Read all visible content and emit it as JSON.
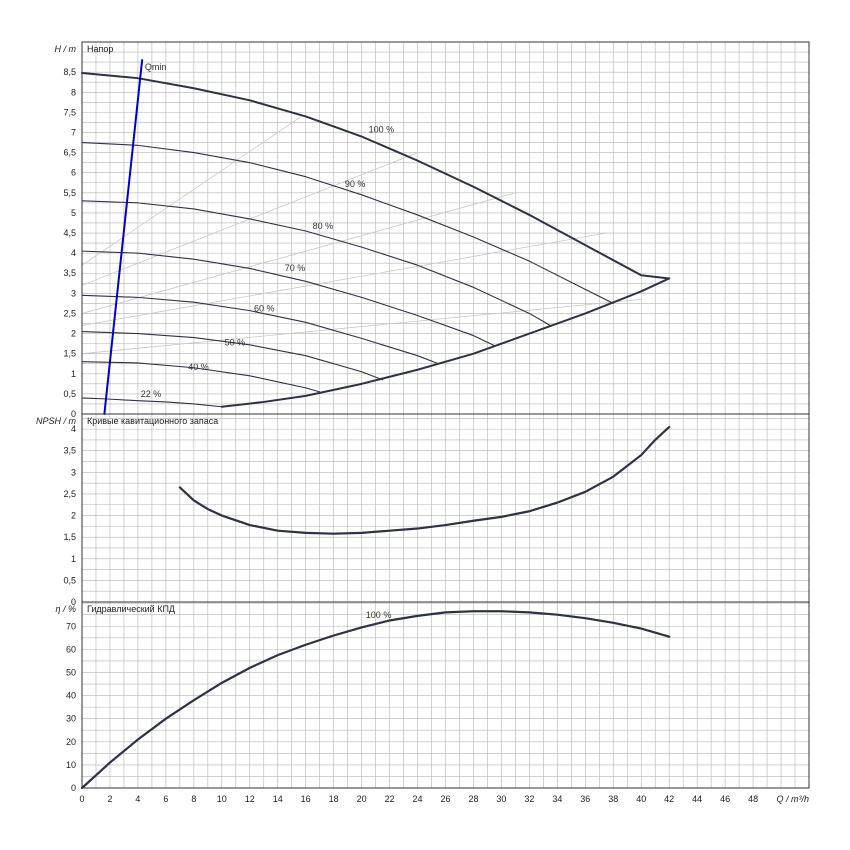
{
  "chart_data": [
    {
      "panel": "head",
      "type": "line",
      "title": "Напор",
      "ylabel": "H / m",
      "xlim": [
        0,
        52
      ],
      "ylim": [
        0,
        9.25
      ],
      "yticks": [
        0,
        0.5,
        1,
        1.5,
        2,
        2.5,
        3,
        3.5,
        4,
        4.5,
        5,
        5.5,
        6,
        6.5,
        7,
        7.5,
        8,
        8.5
      ],
      "grid": true,
      "series": [
        {
          "name": "100 %",
          "x": [
            0,
            4,
            8,
            12,
            16,
            20,
            24,
            28,
            32,
            36,
            40,
            42
          ],
          "y": [
            8.48,
            8.35,
            8.1,
            7.8,
            7.4,
            6.9,
            6.3,
            5.65,
            4.95,
            4.2,
            3.45,
            3.37
          ]
        },
        {
          "name": "90 %",
          "x": [
            0,
            4,
            8,
            12,
            16,
            20,
            24,
            28,
            32,
            36,
            38
          ],
          "y": [
            6.75,
            6.68,
            6.5,
            6.25,
            5.9,
            5.45,
            4.95,
            4.4,
            3.8,
            3.1,
            2.75
          ]
        },
        {
          "name": "80 %",
          "x": [
            0,
            4,
            8,
            12,
            16,
            20,
            24,
            28,
            32,
            33.5
          ],
          "y": [
            5.3,
            5.25,
            5.1,
            4.85,
            4.55,
            4.15,
            3.7,
            3.15,
            2.5,
            2.2
          ]
        },
        {
          "name": "70 %",
          "x": [
            0,
            4,
            8,
            12,
            16,
            20,
            24,
            28,
            29.5
          ],
          "y": [
            4.05,
            4.0,
            3.85,
            3.62,
            3.3,
            2.9,
            2.45,
            1.95,
            1.7
          ]
        },
        {
          "name": "60 %",
          "x": [
            0,
            4,
            8,
            12,
            16,
            20,
            24,
            25.5
          ],
          "y": [
            2.95,
            2.9,
            2.78,
            2.57,
            2.28,
            1.88,
            1.45,
            1.25
          ]
        },
        {
          "name": "50 %",
          "x": [
            0,
            4,
            8,
            12,
            16,
            20,
            21.5
          ],
          "y": [
            2.05,
            2.0,
            1.9,
            1.72,
            1.45,
            1.05,
            0.85
          ]
        },
        {
          "name": "40 %",
          "x": [
            0,
            4,
            8,
            12,
            16,
            17
          ],
          "y": [
            1.3,
            1.27,
            1.15,
            0.95,
            0.65,
            0.55
          ]
        },
        {
          "name": "22 %",
          "x": [
            0,
            2,
            4,
            6,
            8,
            10
          ],
          "y": [
            0.4,
            0.37,
            0.33,
            0.3,
            0.25,
            0.18
          ]
        },
        {
          "name": "",
          "x": [
            10,
            13,
            16,
            20,
            24,
            28,
            32,
            36,
            40,
            42
          ],
          "y": [
            0.18,
            0.3,
            0.45,
            0.75,
            1.1,
            1.5,
            2.0,
            2.5,
            3.05,
            3.37
          ]
        },
        {
          "name": "Qmin",
          "x": [
            1.6,
            4.3
          ],
          "y": [
            0,
            8.8
          ]
        }
      ],
      "reference_lines": [
        {
          "x": [
            0,
            15.7
          ],
          "y": [
            3.7,
            7.4
          ]
        },
        {
          "x": [
            0,
            24
          ],
          "y": [
            3.2,
            6.5
          ]
        },
        {
          "x": [
            0,
            31
          ],
          "y": [
            2.5,
            5.5
          ]
        },
        {
          "x": [
            0,
            37.5
          ],
          "y": [
            2.2,
            4.5
          ]
        },
        {
          "x": [
            0,
            40
          ],
          "y": [
            1.5,
            2.85
          ]
        }
      ]
    },
    {
      "panel": "npsh",
      "type": "line",
      "title": "Кривые кавитационного запаса",
      "ylabel": "NPSH / m",
      "xlim": [
        0,
        52
      ],
      "ylim": [
        0,
        4.35
      ],
      "yticks": [
        0,
        0.5,
        1,
        1.5,
        2,
        2.5,
        3,
        3.5,
        4
      ],
      "grid": true,
      "series": [
        {
          "name": "",
          "x": [
            7,
            8,
            9,
            10,
            12,
            14,
            16,
            18,
            20,
            22,
            24,
            26,
            28,
            30,
            32,
            34,
            36,
            38,
            40,
            41,
            42
          ],
          "y": [
            2.65,
            2.35,
            2.15,
            2.0,
            1.78,
            1.65,
            1.6,
            1.58,
            1.6,
            1.65,
            1.7,
            1.78,
            1.88,
            1.97,
            2.1,
            2.3,
            2.55,
            2.9,
            3.4,
            3.75,
            4.05
          ]
        }
      ]
    },
    {
      "panel": "efficiency",
      "type": "line",
      "title": "Гидравлический КПД",
      "ylabel": "η / %",
      "xlabel": "Q / m³/h",
      "xlim": [
        0,
        52
      ],
      "ylim": [
        0,
        80.5
      ],
      "xticks": [
        0,
        2,
        4,
        6,
        8,
        10,
        12,
        14,
        16,
        18,
        20,
        22,
        24,
        26,
        28,
        30,
        32,
        34,
        36,
        38,
        40,
        42,
        44,
        46,
        48
      ],
      "yticks": [
        0,
        10,
        20,
        30,
        40,
        50,
        60,
        70
      ],
      "grid": true,
      "series": [
        {
          "name": "100 %",
          "x": [
            0,
            2,
            4,
            6,
            8,
            10,
            12,
            14,
            16,
            18,
            20,
            22,
            24,
            26,
            28,
            30,
            32,
            34,
            36,
            38,
            40,
            42
          ],
          "y": [
            0,
            11,
            21,
            30,
            38,
            45.5,
            52,
            57.5,
            62,
            66,
            69.5,
            72.5,
            74.5,
            76,
            76.5,
            76.5,
            76,
            75,
            73.5,
            71.5,
            69,
            65.5
          ]
        }
      ]
    }
  ]
}
